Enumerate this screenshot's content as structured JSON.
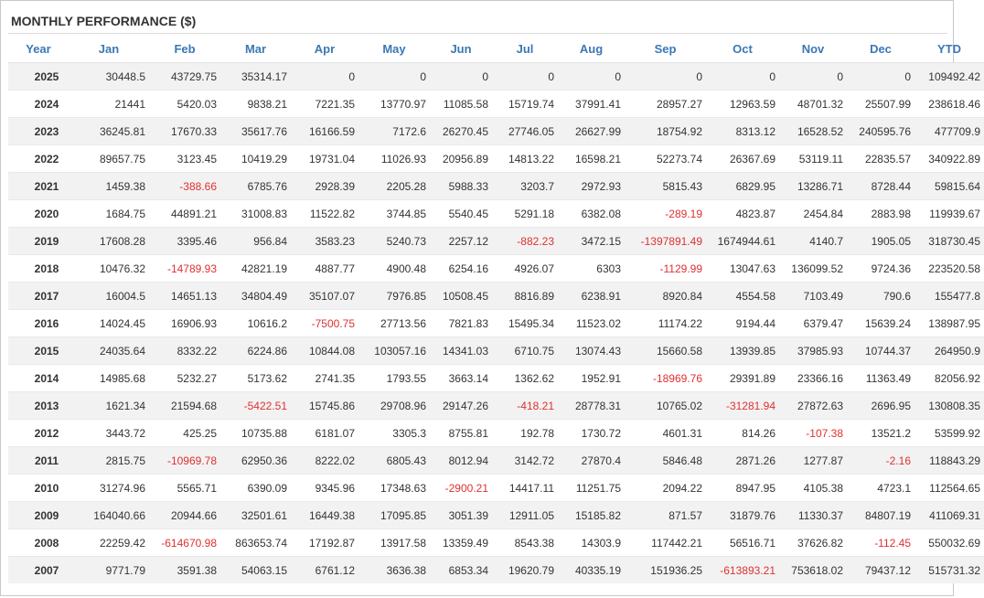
{
  "title": "MONTHLY PERFORMANCE ($)",
  "colors": {
    "header_text": "#3b77b5",
    "negative": "#e03030",
    "stripe": "#f2f2f2"
  },
  "columns": [
    "Year",
    "Jan",
    "Feb",
    "Mar",
    "Apr",
    "May",
    "Jun",
    "Jul",
    "Aug",
    "Sep",
    "Oct",
    "Nov",
    "Dec",
    "YTD"
  ],
  "rows": [
    [
      "2025",
      "30448.5",
      "43729.75",
      "35314.17",
      "0",
      "0",
      "0",
      "0",
      "0",
      "0",
      "0",
      "0",
      "0",
      "109492.42"
    ],
    [
      "2024",
      "21441",
      "5420.03",
      "9838.21",
      "7221.35",
      "13770.97",
      "11085.58",
      "15719.74",
      "37991.41",
      "28957.27",
      "12963.59",
      "48701.32",
      "25507.99",
      "238618.46"
    ],
    [
      "2023",
      "36245.81",
      "17670.33",
      "35617.76",
      "16166.59",
      "7172.6",
      "26270.45",
      "27746.05",
      "26627.99",
      "18754.92",
      "8313.12",
      "16528.52",
      "240595.76",
      "477709.9"
    ],
    [
      "2022",
      "89657.75",
      "3123.45",
      "10419.29",
      "19731.04",
      "11026.93",
      "20956.89",
      "14813.22",
      "16598.21",
      "52273.74",
      "26367.69",
      "53119.11",
      "22835.57",
      "340922.89"
    ],
    [
      "2021",
      "1459.38",
      "-388.66",
      "6785.76",
      "2928.39",
      "2205.28",
      "5988.33",
      "3203.7",
      "2972.93",
      "5815.43",
      "6829.95",
      "13286.71",
      "8728.44",
      "59815.64"
    ],
    [
      "2020",
      "1684.75",
      "44891.21",
      "31008.83",
      "11522.82",
      "3744.85",
      "5540.45",
      "5291.18",
      "6382.08",
      "-289.19",
      "4823.87",
      "2454.84",
      "2883.98",
      "119939.67"
    ],
    [
      "2019",
      "17608.28",
      "3395.46",
      "956.84",
      "3583.23",
      "5240.73",
      "2257.12",
      "-882.23",
      "3472.15",
      "-1397891.49",
      "1674944.61",
      "4140.7",
      "1905.05",
      "318730.45"
    ],
    [
      "2018",
      "10476.32",
      "-14789.93",
      "42821.19",
      "4887.77",
      "4900.48",
      "6254.16",
      "4926.07",
      "6303",
      "-1129.99",
      "13047.63",
      "136099.52",
      "9724.36",
      "223520.58"
    ],
    [
      "2017",
      "16004.5",
      "14651.13",
      "34804.49",
      "35107.07",
      "7976.85",
      "10508.45",
      "8816.89",
      "6238.91",
      "8920.84",
      "4554.58",
      "7103.49",
      "790.6",
      "155477.8"
    ],
    [
      "2016",
      "14024.45",
      "16906.93",
      "10616.2",
      "-7500.75",
      "27713.56",
      "7821.83",
      "15495.34",
      "11523.02",
      "11174.22",
      "9194.44",
      "6379.47",
      "15639.24",
      "138987.95"
    ],
    [
      "2015",
      "24035.64",
      "8332.22",
      "6224.86",
      "10844.08",
      "103057.16",
      "14341.03",
      "6710.75",
      "13074.43",
      "15660.58",
      "13939.85",
      "37985.93",
      "10744.37",
      "264950.9"
    ],
    [
      "2014",
      "14985.68",
      "5232.27",
      "5173.62",
      "2741.35",
      "1793.55",
      "3663.14",
      "1362.62",
      "1952.91",
      "-18969.76",
      "29391.89",
      "23366.16",
      "11363.49",
      "82056.92"
    ],
    [
      "2013",
      "1621.34",
      "21594.68",
      "-5422.51",
      "15745.86",
      "29708.96",
      "29147.26",
      "-418.21",
      "28778.31",
      "10765.02",
      "-31281.94",
      "27872.63",
      "2696.95",
      "130808.35"
    ],
    [
      "2012",
      "3443.72",
      "425.25",
      "10735.88",
      "6181.07",
      "3305.3",
      "8755.81",
      "192.78",
      "1730.72",
      "4601.31",
      "814.26",
      "-107.38",
      "13521.2",
      "53599.92"
    ],
    [
      "2011",
      "2815.75",
      "-10969.78",
      "62950.36",
      "8222.02",
      "6805.43",
      "8012.94",
      "3142.72",
      "27870.4",
      "5846.48",
      "2871.26",
      "1277.87",
      "-2.16",
      "118843.29"
    ],
    [
      "2010",
      "31274.96",
      "5565.71",
      "6390.09",
      "9345.96",
      "17348.63",
      "-2900.21",
      "14417.11",
      "11251.75",
      "2094.22",
      "8947.95",
      "4105.38",
      "4723.1",
      "112564.65"
    ],
    [
      "2009",
      "164040.66",
      "20944.66",
      "32501.61",
      "16449.38",
      "17095.85",
      "3051.39",
      "12911.05",
      "15185.82",
      "871.57",
      "31879.76",
      "11330.37",
      "84807.19",
      "411069.31"
    ],
    [
      "2008",
      "22259.42",
      "-614670.98",
      "863653.74",
      "17192.87",
      "13917.58",
      "13359.49",
      "8543.38",
      "14303.9",
      "117442.21",
      "56516.71",
      "37626.82",
      "-112.45",
      "550032.69"
    ],
    [
      "2007",
      "9771.79",
      "3591.38",
      "54063.15",
      "6761.12",
      "3636.38",
      "6853.34",
      "19620.79",
      "40335.19",
      "151936.25",
      "-613893.21",
      "753618.02",
      "79437.12",
      "515731.32"
    ]
  ]
}
